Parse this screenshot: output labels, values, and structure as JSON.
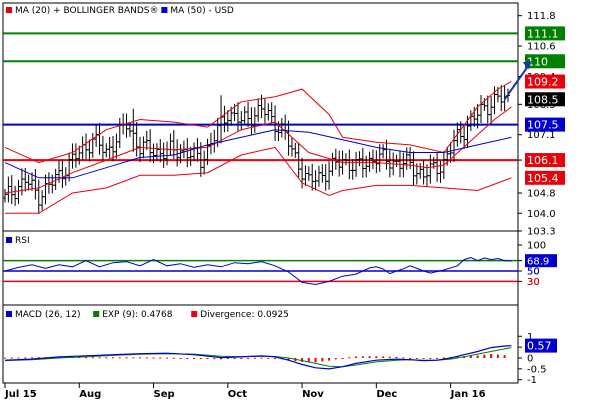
{
  "chart_data": [
    {
      "type": "line",
      "panel": "price",
      "legend": [
        {
          "label": "MA (20) + BOLLINGER BANDS®",
          "color": "#e8000b"
        },
        {
          "label": "MA (50) - USD",
          "color": "#0000cc"
        }
      ],
      "ylim": [
        103.3,
        112.3
      ],
      "y_ticks": [
        111.8,
        110.6,
        109.4,
        108.3,
        107.1,
        106.1,
        104.8,
        104.0,
        103.3
      ],
      "y_tick_labels": [
        "111.8",
        "110.6",
        "109.4",
        "108.3",
        "107.1",
        "106.1",
        "104.8",
        "104.0",
        "103.3"
      ],
      "x_tick_labels": [
        "Jul 15",
        "Aug",
        "Sep",
        "Oct",
        "Nov",
        "Dec",
        "Jan 16"
      ],
      "x_tick_positions": [
        0,
        22,
        44,
        66,
        88,
        110,
        132
      ],
      "n_bars": 150,
      "horizontal_lines": [
        {
          "value": 111.1,
          "label": "111.1",
          "color": "#008000"
        },
        {
          "value": 110.0,
          "label": "110",
          "color": "#008000"
        },
        {
          "value": 107.5,
          "label": "107.5",
          "color": "#0000cc"
        },
        {
          "value": 106.1,
          "label": "106.1",
          "color": "#e8000b"
        }
      ],
      "price_labels": [
        {
          "value": 109.2,
          "label": "109.2",
          "color": "#e8000b"
        },
        {
          "value": 108.5,
          "label": "108.5",
          "color": "#000000"
        },
        {
          "value": 105.4,
          "label": "105.4",
          "color": "#e8000b"
        }
      ],
      "arrow": {
        "from": [
          148,
          108.5
        ],
        "to": [
          156,
          110.0
        ],
        "color": "#1a33aa"
      },
      "ohlc_anchors": [
        [
          0,
          104.6
        ],
        [
          6,
          105.3
        ],
        [
          10,
          104.7
        ],
        [
          14,
          105.2
        ],
        [
          20,
          106.1
        ],
        [
          26,
          106.9
        ],
        [
          30,
          106.4
        ],
        [
          36,
          107.5
        ],
        [
          40,
          106.6
        ],
        [
          46,
          106.4
        ],
        [
          52,
          106.5
        ],
        [
          58,
          106.1
        ],
        [
          62,
          107.0
        ],
        [
          66,
          108.0
        ],
        [
          70,
          107.6
        ],
        [
          76,
          108.1
        ],
        [
          82,
          107.3
        ],
        [
          86,
          106.2
        ],
        [
          90,
          105.2
        ],
        [
          96,
          105.7
        ],
        [
          100,
          106.1
        ],
        [
          104,
          105.8
        ],
        [
          110,
          106.2
        ],
        [
          116,
          106.0
        ],
        [
          120,
          105.9
        ],
        [
          124,
          105.5
        ],
        [
          130,
          106.0
        ],
        [
          134,
          107.0
        ],
        [
          138,
          107.6
        ],
        [
          142,
          108.2
        ],
        [
          146,
          108.5
        ],
        [
          149,
          108.5
        ]
      ],
      "series": [
        {
          "name": "MA (20)",
          "color": "#e8000b",
          "points": [
            [
              0,
              104.8
            ],
            [
              10,
              105.0
            ],
            [
              20,
              105.6
            ],
            [
              30,
              106.1
            ],
            [
              40,
              106.6
            ],
            [
              50,
              106.5
            ],
            [
              60,
              106.6
            ],
            [
              70,
              107.3
            ],
            [
              80,
              107.6
            ],
            [
              90,
              106.4
            ],
            [
              100,
              106.0
            ],
            [
              110,
              106.0
            ],
            [
              120,
              105.9
            ],
            [
              125,
              105.8
            ],
            [
              130,
              105.9
            ],
            [
              135,
              106.5
            ],
            [
              140,
              107.1
            ],
            [
              145,
              107.7
            ],
            [
              150,
              108.2
            ]
          ]
        },
        {
          "name": "Upper band",
          "color": "#e8000b",
          "points": [
            [
              0,
              106.6
            ],
            [
              10,
              106.0
            ],
            [
              20,
              106.4
            ],
            [
              30,
              107.3
            ],
            [
              40,
              107.7
            ],
            [
              50,
              107.6
            ],
            [
              60,
              107.4
            ],
            [
              70,
              108.4
            ],
            [
              80,
              108.6
            ],
            [
              88,
              108.9
            ],
            [
              96,
              107.9
            ],
            [
              100,
              107.0
            ],
            [
              110,
              106.8
            ],
            [
              120,
              106.7
            ],
            [
              130,
              106.4
            ],
            [
              140,
              108.2
            ],
            [
              146,
              108.9
            ],
            [
              150,
              109.2
            ]
          ]
        },
        {
          "name": "Lower band",
          "color": "#e8000b",
          "points": [
            [
              0,
              104.0
            ],
            [
              10,
              104.0
            ],
            [
              20,
              104.8
            ],
            [
              30,
              105.0
            ],
            [
              40,
              105.5
            ],
            [
              50,
              105.5
            ],
            [
              60,
              105.6
            ],
            [
              70,
              106.3
            ],
            [
              80,
              106.6
            ],
            [
              88,
              105.2
            ],
            [
              96,
              104.7
            ],
            [
              100,
              104.9
            ],
            [
              110,
              105.1
            ],
            [
              120,
              105.1
            ],
            [
              130,
              105.0
            ],
            [
              140,
              104.9
            ],
            [
              146,
              105.2
            ],
            [
              150,
              105.4
            ]
          ]
        },
        {
          "name": "MA (50)",
          "color": "#0000cc",
          "points": [
            [
              0,
              106.0
            ],
            [
              10,
              105.4
            ],
            [
              20,
              105.4
            ],
            [
              30,
              105.8
            ],
            [
              40,
              106.2
            ],
            [
              50,
              106.3
            ],
            [
              60,
              106.7
            ],
            [
              70,
              107.0
            ],
            [
              80,
              107.3
            ],
            [
              90,
              107.2
            ],
            [
              100,
              106.9
            ],
            [
              110,
              106.6
            ],
            [
              120,
              106.4
            ],
            [
              130,
              106.4
            ],
            [
              140,
              106.7
            ],
            [
              150,
              107.0
            ]
          ]
        }
      ]
    },
    {
      "type": "line",
      "panel": "rsi",
      "legend": [
        {
          "label": "RSI",
          "color": "#0000cc"
        }
      ],
      "ylim": [
        0,
        100
      ],
      "y_ticks": [
        100,
        70,
        50,
        30
      ],
      "y_tick_labels": [
        "100",
        "70",
        "50",
        "30"
      ],
      "horizontal_lines": [
        {
          "value": 70,
          "label": "70",
          "color": "#008000"
        },
        {
          "value": 50,
          "label": "50",
          "color": "#0000cc"
        },
        {
          "value": 30,
          "label": "30",
          "color": "#e8000b"
        }
      ],
      "value_label": {
        "value": 68.9,
        "label": "68.9"
      },
      "series": [
        {
          "name": "RSI",
          "color": "#0000cc",
          "points": [
            [
              0,
              50
            ],
            [
              4,
              57
            ],
            [
              8,
              62
            ],
            [
              12,
              55
            ],
            [
              16,
              62
            ],
            [
              20,
              58
            ],
            [
              24,
              70
            ],
            [
              28,
              58
            ],
            [
              32,
              66
            ],
            [
              36,
              68
            ],
            [
              40,
              60
            ],
            [
              44,
              72
            ],
            [
              48,
              60
            ],
            [
              52,
              64
            ],
            [
              56,
              57
            ],
            [
              60,
              62
            ],
            [
              64,
              58
            ],
            [
              68,
              66
            ],
            [
              72,
              64
            ],
            [
              76,
              68
            ],
            [
              80,
              60
            ],
            [
              84,
              48
            ],
            [
              88,
              28
            ],
            [
              92,
              24
            ],
            [
              96,
              30
            ],
            [
              100,
              40
            ],
            [
              104,
              44
            ],
            [
              106,
              50
            ],
            [
              108,
              56
            ],
            [
              110,
              58
            ],
            [
              112,
              54
            ],
            [
              114,
              45
            ],
            [
              116,
              50
            ],
            [
              118,
              54
            ],
            [
              120,
              60
            ],
            [
              122,
              55
            ],
            [
              124,
              50
            ],
            [
              126,
              46
            ],
            [
              130,
              52
            ],
            [
              134,
              60
            ],
            [
              136,
              72
            ],
            [
              138,
              76
            ],
            [
              140,
              70
            ],
            [
              142,
              75
            ],
            [
              144,
              72
            ],
            [
              146,
              74
            ],
            [
              148,
              70
            ],
            [
              150,
              69
            ]
          ]
        }
      ]
    },
    {
      "type": "bar",
      "panel": "macd",
      "legend": [
        {
          "label": "MACD (26, 12)",
          "color": "#0000cc"
        },
        {
          "label": "EXP (9): 0.4768",
          "color": "#008000"
        },
        {
          "label": "Divergence: 0.0925",
          "color": "#e8000b"
        }
      ],
      "ylim": [
        -1.15,
        1.15
      ],
      "y_ticks": [
        1,
        0.5,
        0,
        -0.5,
        -1
      ],
      "y_tick_labels": [
        "1",
        "0.5",
        "0",
        "-0.5",
        "-1"
      ],
      "value_label": {
        "value": 0.57,
        "label": "0.57"
      },
      "series": [
        {
          "name": "MACD (26, 12)",
          "color": "#0000cc",
          "points": [
            [
              0,
              -0.1
            ],
            [
              8,
              -0.05
            ],
            [
              16,
              0.05
            ],
            [
              24,
              0.1
            ],
            [
              32,
              0.15
            ],
            [
              40,
              0.2
            ],
            [
              48,
              0.22
            ],
            [
              56,
              0.15
            ],
            [
              64,
              0.02
            ],
            [
              70,
              0.05
            ],
            [
              76,
              0.1
            ],
            [
              80,
              0.05
            ],
            [
              84,
              -0.1
            ],
            [
              88,
              -0.3
            ],
            [
              92,
              -0.45
            ],
            [
              96,
              -0.5
            ],
            [
              100,
              -0.4
            ],
            [
              104,
              -0.25
            ],
            [
              110,
              -0.1
            ],
            [
              116,
              -0.05
            ],
            [
              120,
              -0.08
            ],
            [
              124,
              -0.12
            ],
            [
              128,
              -0.1
            ],
            [
              132,
              0.0
            ],
            [
              136,
              0.15
            ],
            [
              140,
              0.3
            ],
            [
              144,
              0.48
            ],
            [
              148,
              0.55
            ],
            [
              150,
              0.57
            ]
          ]
        },
        {
          "name": "EXP (9): 0.4768",
          "color": "#008000",
          "points": [
            [
              0,
              -0.12
            ],
            [
              8,
              -0.08
            ],
            [
              16,
              0.0
            ],
            [
              24,
              0.06
            ],
            [
              32,
              0.12
            ],
            [
              40,
              0.17
            ],
            [
              48,
              0.2
            ],
            [
              56,
              0.18
            ],
            [
              64,
              0.08
            ],
            [
              70,
              0.06
            ],
            [
              76,
              0.08
            ],
            [
              80,
              0.07
            ],
            [
              84,
              0.0
            ],
            [
              88,
              -0.12
            ],
            [
              92,
              -0.25
            ],
            [
              96,
              -0.38
            ],
            [
              100,
              -0.4
            ],
            [
              104,
              -0.32
            ],
            [
              110,
              -0.18
            ],
            [
              116,
              -0.1
            ],
            [
              120,
              -0.08
            ],
            [
              124,
              -0.1
            ],
            [
              128,
              -0.1
            ],
            [
              132,
              -0.05
            ],
            [
              136,
              0.06
            ],
            [
              140,
              0.18
            ],
            [
              144,
              0.3
            ],
            [
              148,
              0.42
            ],
            [
              150,
              0.48
            ]
          ]
        },
        {
          "name": "Divergence: 0.0925",
          "color": "#e8000b",
          "bars_from": "MACD (26, 12) - EXP (9): 0.4768"
        }
      ]
    }
  ]
}
